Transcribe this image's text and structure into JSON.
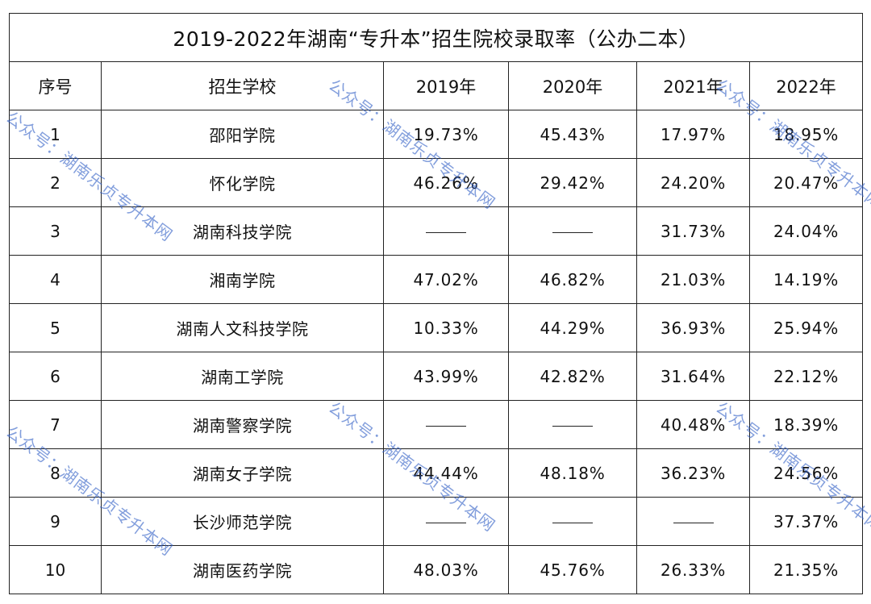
{
  "title": "2019-2022年湖南“专升本”招生院校录取率（公办二本）",
  "headers": {
    "index": "序号",
    "school": "招生学校",
    "y2019": "2019年",
    "y2020": "2020年",
    "y2021": "2021年",
    "y2022": "2022年"
  },
  "rows": [
    {
      "index": "1",
      "school": "邵阳学院",
      "y2019": "19.73%",
      "y2020": "45.43%",
      "y2021": "17.97%",
      "y2022": "18.95%"
    },
    {
      "index": "2",
      "school": "怀化学院",
      "y2019": "46.26%",
      "y2020": "29.42%",
      "y2021": "24.20%",
      "y2022": "20.47%"
    },
    {
      "index": "3",
      "school": "湖南科技学院",
      "y2019": "——",
      "y2020": "——",
      "y2021": "31.73%",
      "y2022": "24.04%"
    },
    {
      "index": "4",
      "school": "湘南学院",
      "y2019": "47.02%",
      "y2020": "46.82%",
      "y2021": "21.03%",
      "y2022": "14.19%"
    },
    {
      "index": "5",
      "school": "湖南人文科技学院",
      "y2019": "10.33%",
      "y2020": "44.29%",
      "y2021": "36.93%",
      "y2022": "25.94%"
    },
    {
      "index": "6",
      "school": "湖南工学院",
      "y2019": "43.99%",
      "y2020": "42.82%",
      "y2021": "31.64%",
      "y2022": "22.12%"
    },
    {
      "index": "7",
      "school": "湖南警察学院",
      "y2019": "——",
      "y2020": "——",
      "y2021": "40.48%",
      "y2022": "18.39%"
    },
    {
      "index": "8",
      "school": "湖南女子学院",
      "y2019": "44.44%",
      "y2020": "48.18%",
      "y2021": "36.23%",
      "y2022": "24.56%"
    },
    {
      "index": "9",
      "school": "长沙师范学院",
      "y2019": "——",
      "y2020": "——",
      "y2021": "——",
      "y2022": "37.37%"
    },
    {
      "index": "10",
      "school": "湖南医药学院",
      "y2019": "48.03%",
      "y2020": "45.76%",
      "y2021": "26.33%",
      "y2022": "21.35%"
    }
  ],
  "watermark": {
    "text": "公众号：湖南乐贞专升本网",
    "color": "#2e5dc4"
  }
}
